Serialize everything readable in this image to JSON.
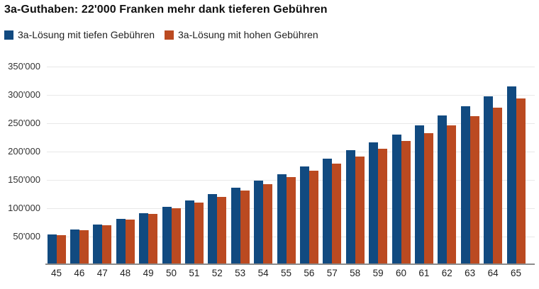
{
  "chart_data": {
    "type": "bar",
    "title": "3a-Guthaben: 22'000 Franken mehr dank tieferen Gebühren",
    "categories": [
      45,
      46,
      47,
      48,
      49,
      50,
      51,
      52,
      53,
      54,
      55,
      56,
      57,
      58,
      59,
      60,
      61,
      62,
      63,
      64,
      65
    ],
    "series": [
      {
        "name": "3a-Lösung mit tiefen Gebühren",
        "color": "#114a80",
        "values": [
          51000,
          60000,
          69000,
          79000,
          89000,
          100000,
          111000,
          122000,
          134000,
          146000,
          158000,
          171000,
          185000,
          200000,
          214000,
          228000,
          244000,
          261000,
          278000,
          295000,
          313000
        ]
      },
      {
        "name": "3a-Lösung mit hohen Gebühren",
        "color": "#bb4a21",
        "values": [
          50000,
          59000,
          68000,
          77000,
          87000,
          97000,
          107000,
          118000,
          129000,
          140000,
          152000,
          164000,
          176000,
          189000,
          203000,
          216000,
          230000,
          244000,
          260000,
          275000,
          291000
        ]
      }
    ],
    "xlabel": "",
    "ylabel": "",
    "ylim": [
      0,
      350000
    ],
    "y_ticks": [
      {
        "value": 50000,
        "label": "50'000"
      },
      {
        "value": 100000,
        "label": "100'000"
      },
      {
        "value": 150000,
        "label": "150'000"
      },
      {
        "value": 200000,
        "label": "200'000"
      },
      {
        "value": 250000,
        "label": "250'000"
      },
      {
        "value": 300000,
        "label": "300'000"
      },
      {
        "value": 350000,
        "label": "350'000"
      }
    ],
    "grid": "horizontal",
    "legend_position": "top-left",
    "grid_color": "#e8e8e8",
    "axis_line_color": "#8c8c8c",
    "background_color": "#ffffff"
  }
}
